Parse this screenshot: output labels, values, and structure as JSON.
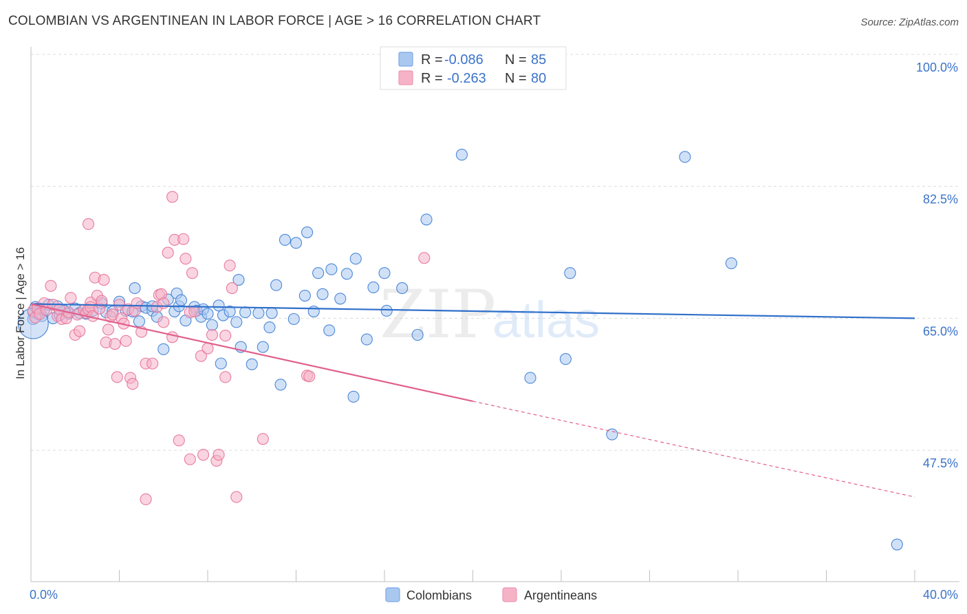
{
  "title": "COLOMBIAN VS ARGENTINEAN IN LABOR FORCE | AGE > 16 CORRELATION CHART",
  "source": "Source: ZipAtlas.com",
  "watermark": {
    "zip": "ZIP",
    "atlas": "atlas"
  },
  "legend_top": {
    "r_label": "R =",
    "n_label": "N =",
    "rows": [
      {
        "r": "-0.086",
        "n": "85",
        "color": "#a9c8f0"
      },
      {
        "r": "-0.263",
        "n": "80",
        "color": "#f6b3c8"
      }
    ]
  },
  "legend_bottom": [
    "Colombians",
    "Argentineans"
  ],
  "chart_data": {
    "type": "scatter",
    "ylabel": "In Labor Force | Age > 16",
    "xlim": [
      0,
      40
    ],
    "ylim": [
      35,
      100
    ],
    "x_tick_labels": [
      {
        "x": 0,
        "label": "0.0%"
      },
      {
        "x": 40,
        "label": "40.0%"
      }
    ],
    "y_tick_labels": [
      {
        "y": 100,
        "label": "100.0%"
      },
      {
        "y": 82.5,
        "label": "82.5%"
      },
      {
        "y": 65,
        "label": "65.0%"
      },
      {
        "y": 47.5,
        "label": "47.5%"
      }
    ],
    "series": [
      {
        "name": "Colombians",
        "color": "#4a86d8",
        "fill": "#a9c8f0",
        "trend": {
          "x0": 0,
          "y0": 66.9,
          "x1": 40,
          "y1": 65.0,
          "color": "#2f6fca"
        },
        "points": [
          [
            0.1,
            64.9
          ],
          [
            0.1,
            65.8
          ],
          [
            0.2,
            66.5
          ],
          [
            0.3,
            65.6
          ],
          [
            0.4,
            66.3
          ],
          [
            0.5,
            65.3
          ],
          [
            0.6,
            66.1
          ],
          [
            0.8,
            66.8
          ],
          [
            1.0,
            65.0
          ],
          [
            1.2,
            66.6
          ],
          [
            1.3,
            65.4
          ],
          [
            1.5,
            66.0
          ],
          [
            1.7,
            65.6
          ],
          [
            2.0,
            66.3
          ],
          [
            2.2,
            65.7
          ],
          [
            2.5,
            65.6
          ],
          [
            2.8,
            66.0
          ],
          [
            3.2,
            67.0
          ],
          [
            3.4,
            65.8
          ],
          [
            3.7,
            65.9
          ],
          [
            4.0,
            67.2
          ],
          [
            4.3,
            66.0
          ],
          [
            4.6,
            65.9
          ],
          [
            4.7,
            69.0
          ],
          [
            4.9,
            64.6
          ],
          [
            5.0,
            66.6
          ],
          [
            5.2,
            66.4
          ],
          [
            5.5,
            66.0
          ],
          [
            5.5,
            66.6
          ],
          [
            5.7,
            65.2
          ],
          [
            6.0,
            60.9
          ],
          [
            6.2,
            67.5
          ],
          [
            6.5,
            65.9
          ],
          [
            6.6,
            68.3
          ],
          [
            6.7,
            66.6
          ],
          [
            6.8,
            67.4
          ],
          [
            7.0,
            64.7
          ],
          [
            7.4,
            66.5
          ],
          [
            7.5,
            66.0
          ],
          [
            7.7,
            65.2
          ],
          [
            7.8,
            66.2
          ],
          [
            8.0,
            65.6
          ],
          [
            8.2,
            64.1
          ],
          [
            8.5,
            66.7
          ],
          [
            8.6,
            59.0
          ],
          [
            8.7,
            65.4
          ],
          [
            9.0,
            65.9
          ],
          [
            9.3,
            64.5
          ],
          [
            9.4,
            70.1
          ],
          [
            9.5,
            61.2
          ],
          [
            9.7,
            65.8
          ],
          [
            10.0,
            58.9
          ],
          [
            10.3,
            65.7
          ],
          [
            10.5,
            61.2
          ],
          [
            10.8,
            63.8
          ],
          [
            10.9,
            65.7
          ],
          [
            11.1,
            69.4
          ],
          [
            11.3,
            56.2
          ],
          [
            11.5,
            75.4
          ],
          [
            11.9,
            64.9
          ],
          [
            12.0,
            75.0
          ],
          [
            12.4,
            68.0
          ],
          [
            12.5,
            76.4
          ],
          [
            12.8,
            65.9
          ],
          [
            13.0,
            71.0
          ],
          [
            13.2,
            68.2
          ],
          [
            13.5,
            63.4
          ],
          [
            13.6,
            71.5
          ],
          [
            14.0,
            67.6
          ],
          [
            14.3,
            70.9
          ],
          [
            14.6,
            54.6
          ],
          [
            14.7,
            72.9
          ],
          [
            15.2,
            62.2
          ],
          [
            15.5,
            69.1
          ],
          [
            16.0,
            71.0
          ],
          [
            16.1,
            66.0
          ],
          [
            16.8,
            69.0
          ],
          [
            17.5,
            62.8
          ],
          [
            17.9,
            78.1
          ],
          [
            19.5,
            86.7
          ],
          [
            22.6,
            57.1
          ],
          [
            24.2,
            59.6
          ],
          [
            24.4,
            71.0
          ],
          [
            26.3,
            49.6
          ],
          [
            29.6,
            86.4
          ],
          [
            31.7,
            72.3
          ],
          [
            39.2,
            35.0
          ]
        ],
        "big_point": [
          0.1,
          64.3
        ]
      },
      {
        "name": "Argentineans",
        "color": "#e77a9c",
        "fill": "#f6b3c8",
        "trend": {
          "x0": 0,
          "y0": 66.9,
          "x1": 20,
          "y1": 54.0,
          "color": "#e15f8c"
        },
        "trend_dashed": {
          "x0": 20,
          "y0": 54.0,
          "x1": 40,
          "y1": 41.3
        },
        "points": [
          [
            0.1,
            66.0
          ],
          [
            0.2,
            65.1
          ],
          [
            0.3,
            66.3
          ],
          [
            0.4,
            65.6
          ],
          [
            0.6,
            67.0
          ],
          [
            0.7,
            66.1
          ],
          [
            0.9,
            69.3
          ],
          [
            1.0,
            66.8
          ],
          [
            1.2,
            65.3
          ],
          [
            1.3,
            66.2
          ],
          [
            1.4,
            64.9
          ],
          [
            1.6,
            65.0
          ],
          [
            1.7,
            65.8
          ],
          [
            1.8,
            67.7
          ],
          [
            2.0,
            62.8
          ],
          [
            2.1,
            65.5
          ],
          [
            2.2,
            63.3
          ],
          [
            2.4,
            66.1
          ],
          [
            2.5,
            65.7
          ],
          [
            2.6,
            66.2
          ],
          [
            2.7,
            67.1
          ],
          [
            2.7,
            66.5
          ],
          [
            2.8,
            65.3
          ],
          [
            2.6,
            77.5
          ],
          [
            2.9,
            70.4
          ],
          [
            3.0,
            68.0
          ],
          [
            3.1,
            66.3
          ],
          [
            3.2,
            67.3
          ],
          [
            3.3,
            70.1
          ],
          [
            3.4,
            61.8
          ],
          [
            3.5,
            63.5
          ],
          [
            3.6,
            65.2
          ],
          [
            3.7,
            65.5
          ],
          [
            3.8,
            61.6
          ],
          [
            3.9,
            57.2
          ],
          [
            4.0,
            66.8
          ],
          [
            4.1,
            65.0
          ],
          [
            4.2,
            64.3
          ],
          [
            4.3,
            62.0
          ],
          [
            4.4,
            66.2
          ],
          [
            4.5,
            57.1
          ],
          [
            4.6,
            56.3
          ],
          [
            4.7,
            66.0
          ],
          [
            4.8,
            67.0
          ],
          [
            5.0,
            63.2
          ],
          [
            5.2,
            41.0
          ],
          [
            5.2,
            59.0
          ],
          [
            5.5,
            59.0
          ],
          [
            5.7,
            66.5
          ],
          [
            5.8,
            68.1
          ],
          [
            5.9,
            68.2
          ],
          [
            6.0,
            67.0
          ],
          [
            6.0,
            64.5
          ],
          [
            6.2,
            73.7
          ],
          [
            6.4,
            81.1
          ],
          [
            6.4,
            62.5
          ],
          [
            6.5,
            75.4
          ],
          [
            6.7,
            48.8
          ],
          [
            6.9,
            75.5
          ],
          [
            7.0,
            72.9
          ],
          [
            7.2,
            65.8
          ],
          [
            7.2,
            46.3
          ],
          [
            7.3,
            71.0
          ],
          [
            7.4,
            65.9
          ],
          [
            7.7,
            60.0
          ],
          [
            7.8,
            46.9
          ],
          [
            8.0,
            61.0
          ],
          [
            8.2,
            62.8
          ],
          [
            8.4,
            46.1
          ],
          [
            8.5,
            46.9
          ],
          [
            8.8,
            57.2
          ],
          [
            8.8,
            62.7
          ],
          [
            9.0,
            72.0
          ],
          [
            9.1,
            69.0
          ],
          [
            9.3,
            41.3
          ],
          [
            10.5,
            49.0
          ],
          [
            12.5,
            57.4
          ],
          [
            12.6,
            57.3
          ],
          [
            17.8,
            73.0
          ]
        ]
      }
    ]
  }
}
